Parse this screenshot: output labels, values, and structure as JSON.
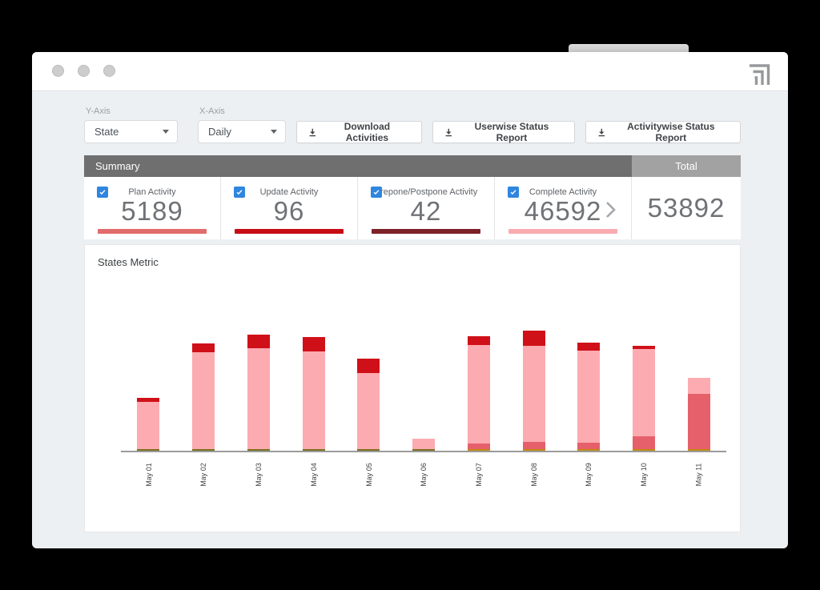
{
  "window": {
    "controls_count": 3,
    "logo": "nested-corner-arrows"
  },
  "toolbar": {
    "y_axis": {
      "label": "Y-Axis",
      "value": "State"
    },
    "x_axis": {
      "label": "X-Axis",
      "value": "Daily"
    },
    "buttons": [
      {
        "label": "Download Activities",
        "icon": "download"
      },
      {
        "label": "Userwise Status Report",
        "icon": "download"
      },
      {
        "label": "Activitywise Status Report",
        "icon": "download"
      }
    ]
  },
  "summary": {
    "header": {
      "left": "Summary",
      "right": "Total"
    },
    "cards": [
      {
        "label": "Plan Activity",
        "value": "5189",
        "checked": true,
        "underline_color": "#e26b6b"
      },
      {
        "label": "Update Activity",
        "value": "96",
        "checked": true,
        "underline_color": "#c60d15"
      },
      {
        "label": "Prepone/Postpone Activity",
        "value": "42",
        "checked": true,
        "underline_color": "#7c2127"
      },
      {
        "label": "Complete Activity",
        "value": "46592",
        "checked": true,
        "underline_color": "#f9abb0"
      }
    ],
    "total": {
      "value": "53892"
    }
  },
  "chart": {
    "title": "States Metric"
  },
  "chart_data": {
    "type": "bar",
    "stacked": true,
    "title": "States Metric",
    "x_labels": [
      "May 01",
      "May 02",
      "May 03",
      "May 04",
      "May 05",
      "May 06",
      "May 07",
      "May 08",
      "May 09",
      "May 10",
      "May 11"
    ],
    "axis": {
      "y_axis_visible": false,
      "gridlines": false,
      "x_label_rotation_deg": -90
    },
    "units": "pixel-estimated segment heights (y-axis unlabeled in source)",
    "palette": {
      "pink": "#fcabb1",
      "rose": "#e6606b",
      "red": "#d01018",
      "olive": "#7b701e",
      "amber": "#c28a10"
    },
    "bars": [
      {
        "label": "May 01",
        "segments": [
          {
            "color": "olive",
            "h": 2
          },
          {
            "color": "pink",
            "h": 59
          },
          {
            "color": "red",
            "h": 5
          }
        ]
      },
      {
        "label": "May 02",
        "segments": [
          {
            "color": "olive",
            "h": 2
          },
          {
            "color": "pink",
            "h": 121
          },
          {
            "color": "red",
            "h": 11
          }
        ]
      },
      {
        "label": "May 03",
        "segments": [
          {
            "color": "olive",
            "h": 2
          },
          {
            "color": "pink",
            "h": 126
          },
          {
            "color": "red",
            "h": 17
          }
        ]
      },
      {
        "label": "May 04",
        "segments": [
          {
            "color": "olive",
            "h": 2
          },
          {
            "color": "pink",
            "h": 122
          },
          {
            "color": "red",
            "h": 18
          }
        ]
      },
      {
        "label": "May 05",
        "segments": [
          {
            "color": "olive",
            "h": 2
          },
          {
            "color": "pink",
            "h": 95
          },
          {
            "color": "red",
            "h": 18
          }
        ]
      },
      {
        "label": "May 06",
        "segments": [
          {
            "color": "olive",
            "h": 2
          },
          {
            "color": "pink",
            "h": 13
          }
        ]
      },
      {
        "label": "May 07",
        "segments": [
          {
            "color": "amber",
            "h": 2
          },
          {
            "color": "rose",
            "h": 7
          },
          {
            "color": "pink",
            "h": 123
          },
          {
            "color": "red",
            "h": 11
          }
        ]
      },
      {
        "label": "May 08",
        "segments": [
          {
            "color": "amber",
            "h": 2
          },
          {
            "color": "rose",
            "h": 9
          },
          {
            "color": "pink",
            "h": 120
          },
          {
            "color": "red",
            "h": 19
          }
        ]
      },
      {
        "label": "May 09",
        "segments": [
          {
            "color": "amber",
            "h": 2
          },
          {
            "color": "rose",
            "h": 8
          },
          {
            "color": "pink",
            "h": 115
          },
          {
            "color": "red",
            "h": 10
          }
        ]
      },
      {
        "label": "May 10",
        "segments": [
          {
            "color": "amber",
            "h": 2
          },
          {
            "color": "rose",
            "h": 16
          },
          {
            "color": "pink",
            "h": 109
          },
          {
            "color": "red",
            "h": 4
          }
        ]
      },
      {
        "label": "May 11",
        "segments": [
          {
            "color": "amber",
            "h": 2
          },
          {
            "color": "rose",
            "h": 69
          },
          {
            "color": "pink",
            "h": 20
          }
        ]
      }
    ]
  },
  "colors": {
    "canvas": "#000000",
    "body_bg": "#edf0f3",
    "summary_header_left": "#6f6f6f",
    "summary_header_right": "#a2a2a2",
    "checkbox_blue": "#2e86df",
    "axis_line": "#9b9b9b"
  },
  "icons": {
    "download": "arrow-into-tray",
    "caret_down": "▾",
    "chevron_right": "›",
    "check": "✓"
  }
}
